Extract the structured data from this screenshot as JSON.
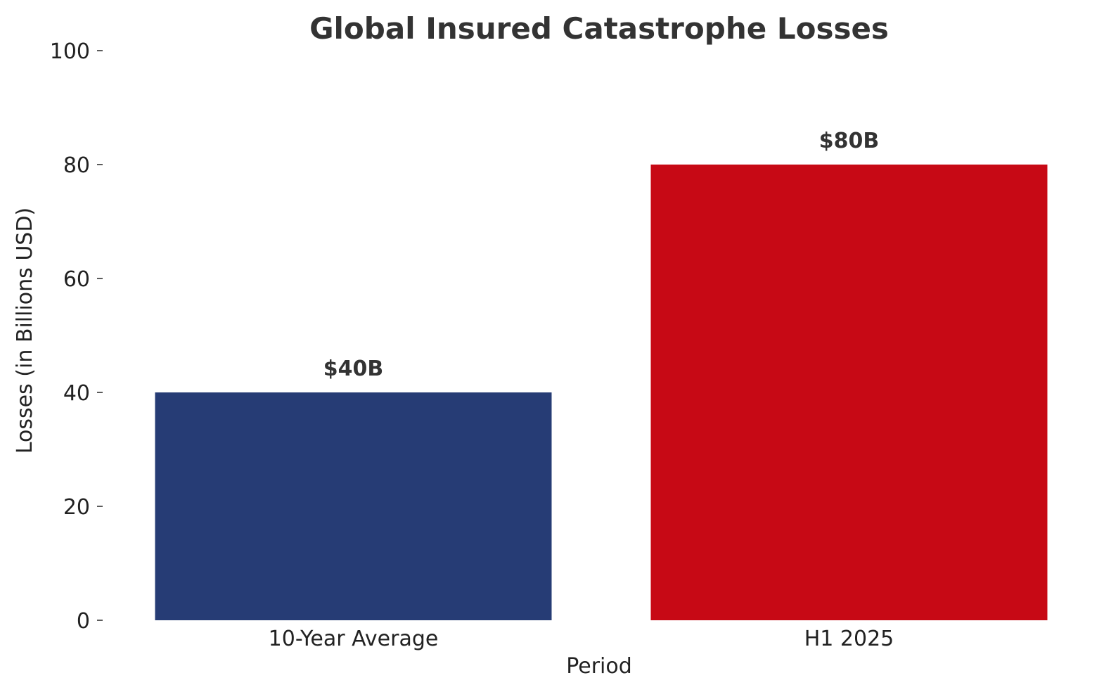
{
  "chart_data": {
    "type": "bar",
    "title": "Global Insured Catastrophe Losses",
    "xlabel": "Period",
    "ylabel": "Losses (in Billions USD)",
    "categories": [
      "10-Year Average",
      "H1 2025"
    ],
    "values": [
      40,
      80
    ],
    "data_labels": [
      "$40B",
      "$80B"
    ],
    "colors": [
      "#263c75",
      "#c70915"
    ],
    "ylim": [
      0,
      100
    ],
    "yticks": [
      0,
      20,
      40,
      60,
      80,
      100
    ],
    "grid": false,
    "legend": "none"
  }
}
